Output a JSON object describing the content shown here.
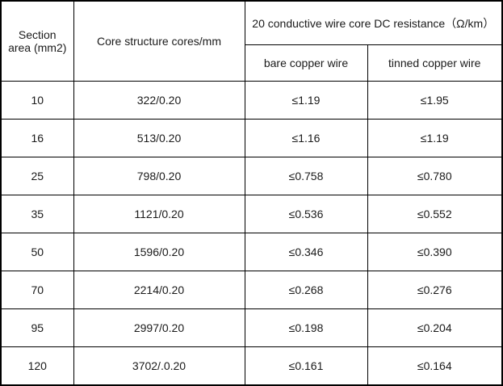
{
  "table": {
    "headers": {
      "section_area": "Section area (mm2)",
      "core_structure": "Core structure cores/mm",
      "dc_resistance_group": "20 conductive wire core DC resistance（Ω/km）",
      "bare_copper": "bare copper wire",
      "tinned_copper": "tinned copper wire"
    },
    "rows": [
      {
        "section_area": "10",
        "core_structure": "322/0.20",
        "bare": "≤1.19",
        "tinned": "≤1.95"
      },
      {
        "section_area": "16",
        "core_structure": "513/0.20",
        "bare": "≤1.16",
        "tinned": "≤1.19"
      },
      {
        "section_area": "25",
        "core_structure": "798/0.20",
        "bare": "≤0.758",
        "tinned": "≤0.780"
      },
      {
        "section_area": "35",
        "core_structure": "1121/0.20",
        "bare": "≤0.536",
        "tinned": "≤0.552"
      },
      {
        "section_area": "50",
        "core_structure": "1596/0.20",
        "bare": "≤0.346",
        "tinned": "≤0.390"
      },
      {
        "section_area": "70",
        "core_structure": "2214/0.20",
        "bare": "≤0.268",
        "tinned": "≤0.276"
      },
      {
        "section_area": "95",
        "core_structure": "2997/0.20",
        "bare": "≤0.198",
        "tinned": "≤0.204"
      },
      {
        "section_area": "120",
        "core_structure": "3702/.0.20",
        "bare": "≤0.161",
        "tinned": "≤0.164"
      }
    ],
    "colors": {
      "border": "#000000",
      "background": "#ffffff",
      "text": "#1a1a1a"
    }
  }
}
